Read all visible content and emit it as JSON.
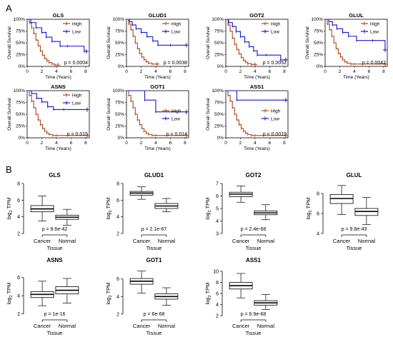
{
  "panel_labels": {
    "a": "A",
    "b": "B"
  },
  "colors": {
    "high": "#b0481c",
    "low": "#1414d2",
    "axis": "#000000",
    "box_fill": "#ffffff"
  },
  "chart_data": [
    {
      "type": "line",
      "panel": "A",
      "title": "GLS",
      "xlabel": "Time (Years)",
      "ylabel": "Overall Survival",
      "xlim": [
        0,
        8.5
      ],
      "ylim": [
        0,
        1
      ],
      "x_ticks": [
        0,
        2,
        4,
        6,
        8
      ],
      "y_ticks": [
        "0%",
        "25%",
        "50%",
        "75%",
        "100%"
      ],
      "legend_position": "top-right",
      "pvalue": "p = 0.0004",
      "series": [
        {
          "name": "High",
          "x": [
            0,
            0.3,
            0.6,
            0.9,
            1.2,
            1.5,
            1.8,
            2.1,
            2.4,
            2.7,
            3.0,
            3.4,
            3.8,
            4.2
          ],
          "values": [
            1,
            0.93,
            0.82,
            0.7,
            0.56,
            0.44,
            0.33,
            0.24,
            0.17,
            0.12,
            0.08,
            0.05,
            0.03,
            0.03
          ]
        },
        {
          "name": "Low",
          "x": [
            0,
            0.5,
            1.2,
            2.0,
            2.6,
            3.4,
            4.5,
            5.5,
            7.8,
            8.1
          ],
          "values": [
            1,
            0.93,
            0.82,
            0.72,
            0.62,
            0.53,
            0.43,
            0.43,
            0.32,
            0.32
          ]
        }
      ]
    },
    {
      "type": "line",
      "panel": "A",
      "title": "GLUD1",
      "xlabel": "Time (Years)",
      "ylabel": "Overall Survival",
      "xlim": [
        0,
        8.5
      ],
      "ylim": [
        0,
        1
      ],
      "x_ticks": [
        0,
        2,
        4,
        6,
        8
      ],
      "y_ticks": [
        "0%",
        "25%",
        "50%",
        "75%",
        "100%"
      ],
      "legend_position": "top-right",
      "pvalue": "p = 0.0038",
      "series": [
        {
          "name": "High",
          "x": [
            0,
            0.3,
            0.6,
            0.9,
            1.2,
            1.5,
            1.8,
            2.1,
            2.4,
            2.7,
            3.0,
            3.5,
            4.2
          ],
          "values": [
            1,
            0.9,
            0.78,
            0.64,
            0.5,
            0.38,
            0.28,
            0.2,
            0.14,
            0.1,
            0.07,
            0.05,
            0.05
          ]
        },
        {
          "name": "Low",
          "x": [
            0,
            0.4,
            0.8,
            1.3,
            2.0,
            2.8,
            3.6,
            4.3,
            6.0,
            8.2
          ],
          "values": [
            1,
            0.95,
            0.88,
            0.8,
            0.72,
            0.63,
            0.54,
            0.45,
            0.45,
            0.45
          ]
        }
      ]
    },
    {
      "type": "line",
      "panel": "A",
      "title": "GOT2",
      "xlabel": "Time (Years)",
      "ylabel": "Overall Survival",
      "xlim": [
        0,
        8.5
      ],
      "ylim": [
        0,
        1
      ],
      "x_ticks": [
        0,
        2,
        4,
        6,
        8
      ],
      "y_ticks": [
        "0%",
        "25%",
        "50%",
        "75%",
        "100%"
      ],
      "legend_position": "top-right",
      "pvalue": "p = 0.0052",
      "series": [
        {
          "name": "High",
          "x": [
            0,
            0.3,
            0.6,
            0.9,
            1.2,
            1.5,
            1.8,
            2.1,
            2.4,
            2.7,
            3.0,
            3.5,
            4.0
          ],
          "values": [
            1,
            0.88,
            0.75,
            0.6,
            0.47,
            0.36,
            0.27,
            0.19,
            0.13,
            0.09,
            0.06,
            0.04,
            0.04
          ]
        },
        {
          "name": "Low",
          "x": [
            0,
            0.4,
            0.9,
            1.4,
            2.0,
            2.6,
            3.2,
            3.8,
            4.3,
            5.5,
            7.5,
            8.2
          ],
          "values": [
            1,
            0.93,
            0.85,
            0.74,
            0.63,
            0.52,
            0.42,
            0.33,
            0.24,
            0.24,
            0.14,
            0.14
          ]
        }
      ]
    },
    {
      "type": "line",
      "panel": "A",
      "title": "GLUL",
      "xlabel": "Time (Years)",
      "ylabel": "Overall Survival",
      "xlim": [
        0,
        8.5
      ],
      "ylim": [
        0,
        1
      ],
      "x_ticks": [
        0,
        2,
        4,
        6,
        8
      ],
      "y_ticks": [
        "0%",
        "25%",
        "50%",
        "75%",
        "100%"
      ],
      "legend_position": "top-right",
      "pvalue": "p = 0.0042",
      "series": [
        {
          "name": "High",
          "x": [
            0,
            0.3,
            0.6,
            0.9,
            1.2,
            1.5,
            1.8,
            2.1,
            2.4,
            2.7,
            3.0,
            3.5,
            4.0,
            8.2
          ],
          "values": [
            1,
            0.9,
            0.78,
            0.64,
            0.5,
            0.38,
            0.28,
            0.2,
            0.14,
            0.1,
            0.07,
            0.05,
            0.05,
            0.05
          ]
        },
        {
          "name": "Low",
          "x": [
            0,
            0.5,
            1.0,
            1.6,
            2.4,
            3.2,
            4.3,
            6.5,
            8.2
          ],
          "values": [
            1,
            0.95,
            0.88,
            0.8,
            0.72,
            0.64,
            0.55,
            0.55,
            0.35
          ]
        }
      ]
    },
    {
      "type": "line",
      "panel": "A",
      "title": "ASNS",
      "xlabel": "Time (Years)",
      "ylabel": "Overall Survival",
      "xlim": [
        0,
        8.5
      ],
      "ylim": [
        0,
        1
      ],
      "x_ticks": [
        0,
        2,
        4,
        6,
        8
      ],
      "y_ticks": [
        "0%",
        "25%",
        "50%",
        "75%",
        "100%"
      ],
      "legend_position": "top-right",
      "pvalue": "p = 0.015",
      "series": [
        {
          "name": "High",
          "x": [
            0,
            0.3,
            0.6,
            0.9,
            1.2,
            1.5,
            1.8,
            2.1,
            2.4,
            2.7,
            3.0,
            3.5,
            4.0,
            8.2
          ],
          "values": [
            1,
            0.9,
            0.78,
            0.64,
            0.5,
            0.38,
            0.28,
            0.2,
            0.14,
            0.1,
            0.07,
            0.05,
            0.05,
            0.05
          ]
        },
        {
          "name": "Low",
          "x": [
            0,
            0.6,
            1.3,
            2.0,
            2.8,
            3.6,
            5.0,
            8.2
          ],
          "values": [
            1,
            0.94,
            0.84,
            0.76,
            0.66,
            0.6,
            0.6,
            0.6
          ]
        }
      ]
    },
    {
      "type": "line",
      "panel": "A",
      "title": "GOT1",
      "xlabel": "Time (Years)",
      "ylabel": "Overall Survival",
      "xlim": [
        0,
        8.5
      ],
      "ylim": [
        0,
        1
      ],
      "x_ticks": [
        0,
        2,
        4,
        6,
        8
      ],
      "y_ticks": [
        "0%",
        "25%",
        "50%",
        "75%",
        "100%"
      ],
      "legend_position": "right",
      "pvalue": "p = 0.014",
      "series": [
        {
          "name": "High",
          "x": [
            0,
            0.3,
            0.6,
            0.9,
            1.2,
            1.5,
            1.8,
            2.1,
            2.4,
            2.7,
            3.0,
            3.5,
            4.0,
            8.2
          ],
          "values": [
            1,
            0.9,
            0.78,
            0.64,
            0.5,
            0.38,
            0.28,
            0.2,
            0.14,
            0.1,
            0.07,
            0.05,
            0.05,
            0.05
          ]
        },
        {
          "name": "Low",
          "x": [
            0,
            2.5,
            4.0,
            8.2
          ],
          "values": [
            1,
            0.8,
            0.55,
            0.55
          ]
        }
      ]
    },
    {
      "type": "line",
      "panel": "A",
      "title": "ASS1",
      "xlabel": "Time (Years)",
      "ylabel": "Overall Survival",
      "xlim": [
        0,
        8.5
      ],
      "ylim": [
        0,
        1
      ],
      "x_ticks": [
        0,
        2,
        4,
        6,
        8
      ],
      "y_ticks": [
        "0%",
        "25%",
        "50%",
        "75%",
        "100%"
      ],
      "legend_position": "right",
      "pvalue": "p = 0.0019",
      "series": [
        {
          "name": "High",
          "x": [
            0,
            0.3,
            0.6,
            0.9,
            1.2,
            1.5,
            1.8,
            2.1,
            2.4,
            2.7,
            3.0,
            3.5,
            4.0,
            8.2
          ],
          "values": [
            1,
            0.9,
            0.78,
            0.64,
            0.5,
            0.38,
            0.28,
            0.2,
            0.14,
            0.1,
            0.07,
            0.05,
            0.05,
            0.05
          ]
        },
        {
          "name": "Low",
          "x": [
            0,
            1.5,
            8.2
          ],
          "values": [
            1,
            0.8,
            0.8
          ]
        }
      ]
    },
    {
      "type": "box",
      "panel": "B",
      "title": "GLS",
      "xlabel": "Tissue",
      "ylabel": "log2 TPM",
      "ylim": [
        2,
        8
      ],
      "y_ticks": [
        2,
        4,
        6,
        8
      ],
      "categories": [
        "Cancer",
        "Normal"
      ],
      "pvalue": "p = 8.6e-42",
      "boxes": [
        {
          "category": "Cancer",
          "min": 3.5,
          "q1": 4.6,
          "median": 4.95,
          "q3": 5.35,
          "max": 6.5
        },
        {
          "category": "Normal",
          "min": 3.0,
          "q1": 3.7,
          "median": 3.95,
          "q3": 4.2,
          "max": 4.9
        }
      ]
    },
    {
      "type": "box",
      "panel": "B",
      "title": "GLUD1",
      "xlabel": "Tissue",
      "ylabel": "log2 TPM",
      "ylim": [
        2,
        8
      ],
      "y_ticks": [
        2,
        4,
        6,
        8
      ],
      "categories": [
        "Cancer",
        "Normal"
      ],
      "pvalue": "p = 2.1e-67",
      "boxes": [
        {
          "category": "Cancer",
          "min": 6.1,
          "q1": 6.6,
          "median": 6.85,
          "q3": 7.05,
          "max": 7.6
        },
        {
          "category": "Normal",
          "min": 4.6,
          "q1": 5.0,
          "median": 5.3,
          "q3": 5.6,
          "max": 6.2
        }
      ]
    },
    {
      "type": "box",
      "panel": "B",
      "title": "GOT2",
      "xlabel": "Tissue",
      "ylabel": "log2 TPM",
      "ylim": [
        3,
        7
      ],
      "y_ticks": [
        3,
        4,
        5,
        6,
        7
      ],
      "categories": [
        "Cancer",
        "Normal"
      ],
      "pvalue": "p = 2.4e-68",
      "boxes": [
        {
          "category": "Cancer",
          "min": 5.5,
          "q1": 5.95,
          "median": 6.15,
          "q3": 6.3,
          "max": 6.8
        },
        {
          "category": "Normal",
          "min": 4.1,
          "q1": 4.5,
          "median": 4.65,
          "q3": 4.8,
          "max": 5.3
        }
      ]
    },
    {
      "type": "box",
      "panel": "B",
      "title": "GLUL",
      "xlabel": "Tissue",
      "ylabel": "log2 TPM",
      "ylim": [
        4,
        9
      ],
      "y_ticks": [
        4,
        6,
        8
      ],
      "categories": [
        "Cancer",
        "Normal"
      ],
      "pvalue": "p = 9.8e-43",
      "boxes": [
        {
          "category": "Cancer",
          "min": 5.9,
          "q1": 7.0,
          "median": 7.5,
          "q3": 7.9,
          "max": 8.8
        },
        {
          "category": "Normal",
          "min": 4.9,
          "q1": 5.8,
          "median": 6.2,
          "q3": 6.5,
          "max": 7.6
        }
      ]
    },
    {
      "type": "box",
      "panel": "B",
      "title": "ASNS",
      "xlabel": "Tissue",
      "ylabel": "log2 TPM",
      "ylim": [
        1.5,
        7
      ],
      "y_ticks": [
        2,
        4,
        6
      ],
      "categories": [
        "Cancer",
        "Normal"
      ],
      "pvalue": "p = 1e-16",
      "boxes": [
        {
          "category": "Cancer",
          "min": 2.9,
          "q1": 3.8,
          "median": 4.15,
          "q3": 4.45,
          "max": 5.6
        },
        {
          "category": "Normal",
          "min": 3.2,
          "q1": 4.2,
          "median": 4.6,
          "q3": 5.0,
          "max": 5.9
        }
      ]
    },
    {
      "type": "box",
      "panel": "B",
      "title": "GOT1",
      "xlabel": "Tissue",
      "ylabel": "log2 TPM",
      "ylim": [
        1.5,
        7.2
      ],
      "y_ticks": [
        2,
        4,
        6
      ],
      "categories": [
        "Cancer",
        "Normal"
      ],
      "pvalue": "p = 6e-68",
      "boxes": [
        {
          "category": "Cancer",
          "min": 4.4,
          "q1": 5.4,
          "median": 5.75,
          "q3": 6.05,
          "max": 6.9
        },
        {
          "category": "Normal",
          "min": 3.0,
          "q1": 3.7,
          "median": 4.0,
          "q3": 4.3,
          "max": 5.0
        }
      ]
    },
    {
      "type": "box",
      "panel": "B",
      "title": "ASS1",
      "xlabel": "Tissue",
      "ylabel": "log2 TPM",
      "ylim": [
        1.5,
        10.5
      ],
      "y_ticks": [
        2,
        4,
        6,
        8,
        10
      ],
      "categories": [
        "Cancer",
        "Normal"
      ],
      "pvalue": "p = 6.9e-68",
      "boxes": [
        {
          "category": "Cancer",
          "min": 5.2,
          "q1": 6.8,
          "median": 7.4,
          "q3": 8.0,
          "max": 9.6
        },
        {
          "category": "Normal",
          "min": 3.1,
          "q1": 3.9,
          "median": 4.3,
          "q3": 4.7,
          "max": 5.8
        }
      ]
    }
  ]
}
